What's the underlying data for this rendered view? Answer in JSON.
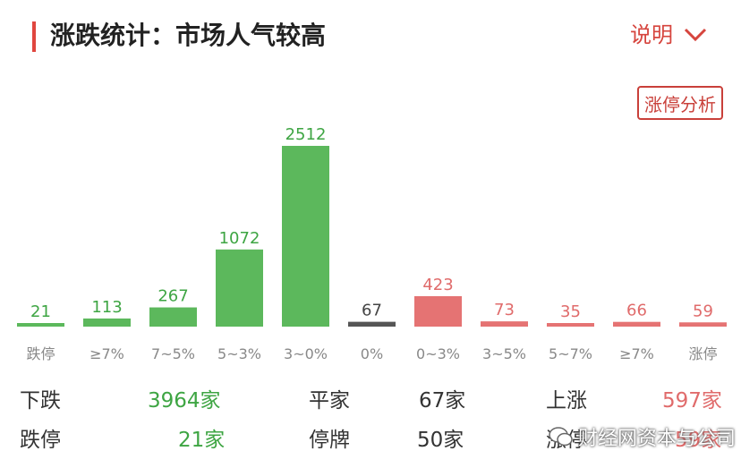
{
  "header": {
    "title": "涨跌统计：市场人气较高",
    "explain_label": "说明",
    "limit_button": "涨停分析"
  },
  "chart_data": {
    "type": "bar",
    "categories": [
      "跌停",
      "≥7%",
      "7~5%",
      "5~3%",
      "3~0%",
      "0%",
      "0~3%",
      "3~5%",
      "5~7%",
      "≥7%",
      "涨停"
    ],
    "values": [
      21,
      113,
      267,
      1072,
      2512,
      67,
      423,
      73,
      35,
      66,
      59
    ],
    "colors": [
      "#5cb85c",
      "#5cb85c",
      "#5cb85c",
      "#5cb85c",
      "#5cb85c",
      "#555555",
      "#e57373",
      "#e57373",
      "#e57373",
      "#e57373",
      "#e57373"
    ],
    "label_colors": [
      "#3ea543",
      "#3ea543",
      "#3ea543",
      "#3ea543",
      "#3ea543",
      "#444444",
      "#e06b6b",
      "#e06b6b",
      "#e06b6b",
      "#e06b6b",
      "#e06b6b"
    ],
    "title": "",
    "xlabel": "",
    "ylabel": "",
    "grid": false
  },
  "stats": {
    "down_label": "下跌",
    "down_value": "3964家",
    "flat_label": "平家",
    "flat_value": "67家",
    "up_label": "上涨",
    "up_value": "597家",
    "limit_down_label": "跌停",
    "limit_down_value": "21家",
    "halt_label": "停牌",
    "halt_value": "50家",
    "limit_up_label": "涨停",
    "limit_up_value": "59家"
  },
  "watermark": "财经网资本与公司",
  "colors": {
    "accent": "#e0463f",
    "down": "#5cb85c",
    "up": "#e57373",
    "flat": "#555555"
  }
}
